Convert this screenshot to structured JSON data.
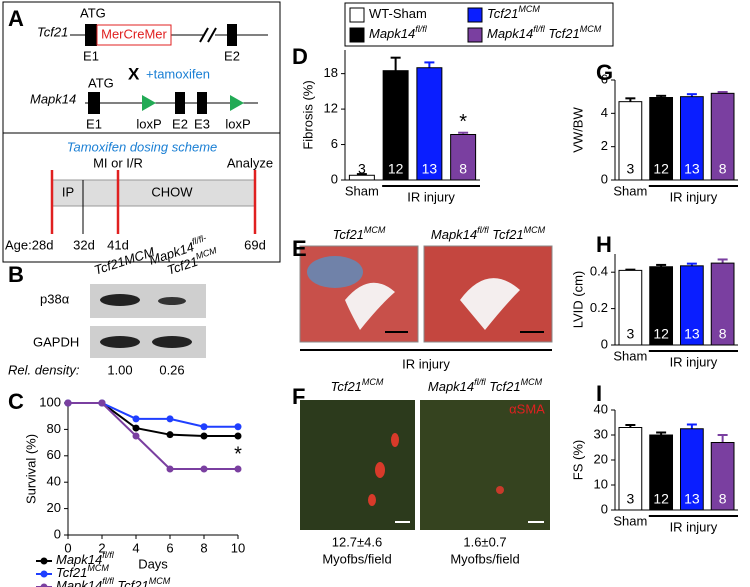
{
  "figure_labels": [
    "A",
    "B",
    "C",
    "D",
    "E",
    "F",
    "G",
    "H",
    "I"
  ],
  "panel_a": {
    "gene1": "Tcf21",
    "atg1": "ATG",
    "cassette": "MerCreMer",
    "e1a": "E1",
    "e2a": "E2",
    "cross": "X",
    "treatment": "+tamoxifen",
    "gene2": "Mapk14",
    "atg2": "ATG",
    "e1b": "E1",
    "loxp1": "loxP",
    "e2b": "E2",
    "e3": "E3",
    "loxp2": "loxP",
    "scheme_title": "Tamoxifen dosing scheme",
    "mi": "MI or I/R",
    "analyze": "Analyze",
    "ip": "IP",
    "chow": "CHOW",
    "ages": [
      "Age:28d",
      "32d",
      "41d",
      "69d"
    ]
  },
  "panel_b": {
    "lane_labels": [
      [
        [
          {
            "t": "Tcf21MCM"
          }
        ]
      ],
      [
        [
          {
            "t": "Mapk14",
            "s": "fl/fl-"
          }
        ],
        [
          {
            "t": "Tcf21",
            "s": "MCM"
          }
        ]
      ]
    ],
    "rows": [
      "p38α",
      "GAPDH"
    ],
    "density_label": "Rel. density:",
    "densities": [
      "1.00",
      "0.26"
    ]
  },
  "panel_e": {
    "titles": [
      [
        {
          "t": "Tcf21",
          "s": "MCM"
        }
      ],
      [
        {
          "t": "Mapk14",
          "s": "fl/fl"
        },
        {
          "t": " Tcf21",
          "s": "MCM"
        }
      ]
    ],
    "group_label": "IR injury"
  },
  "panel_f": {
    "titles": [
      [
        {
          "t": "Tcf21",
          "s": "MCM"
        }
      ],
      [
        {
          "t": "Mapk14",
          "s": "fl/fl"
        },
        {
          "t": " Tcf21",
          "s": "MCM"
        }
      ]
    ],
    "stain": "αSMA",
    "counts": [
      "12.7±4.6",
      "1.6±0.7"
    ],
    "units": [
      "Myofbs/field",
      "Myofbs/field"
    ]
  },
  "chart_data": [
    {
      "type": "line",
      "x": [
        0,
        2,
        4,
        6,
        8,
        10
      ],
      "xlim": [
        0,
        10
      ],
      "xticks": [
        0,
        2,
        4,
        6,
        8,
        10
      ],
      "ylim": [
        0,
        100
      ],
      "yticks": [
        0,
        20,
        40,
        60,
        80,
        100
      ],
      "x_label": "Days",
      "y_label": "Survival (%)",
      "annotation": "*",
      "legend": "bottom",
      "series": [
        {
          "name": [
            {
              "t": "Mapk14",
              "s": "fl/fl"
            }
          ],
          "color": "#000000",
          "values": [
            100,
            100,
            81,
            76,
            75,
            75
          ]
        },
        {
          "name": [
            {
              "t": "Tcf21",
              "s": "MCM"
            }
          ],
          "color": "#1f3fff",
          "values": [
            100,
            100,
            88,
            88,
            82,
            82
          ]
        },
        {
          "name": [
            {
              "t": "Mapk14",
              "s": "fl/fl"
            },
            {
              "t": " Tcf21",
              "s": "MCM"
            }
          ],
          "color": "#7a3fa0",
          "values": [
            100,
            100,
            75,
            50,
            50,
            50
          ]
        }
      ]
    },
    {
      "type": "bar",
      "categories": [
        "Sham",
        null,
        null,
        null
      ],
      "values": [
        0.8,
        18.5,
        19,
        7.7
      ],
      "errors": [
        0.2,
        2.2,
        0.9,
        0.3
      ],
      "colors": [
        "#ffffff",
        "#000000",
        "#0a1eff",
        "#7a3fa0"
      ],
      "bar_labels": [
        "3",
        "12",
        "13",
        "8"
      ],
      "group_label": "IR injury",
      "ylim": [
        0,
        22
      ],
      "yticks": [
        0,
        6,
        12,
        18
      ],
      "y_label": "Fibrosis (%)",
      "annotation": "*",
      "legend": [
        [
          {
            "t": "WT-Sham"
          }
        ],
        [
          {
            "t": "Mapk14",
            "s": "fl/fl"
          }
        ],
        [
          {
            "t": "Tcf21",
            "s": "MCM"
          }
        ],
        [
          {
            "t": "Mapk14",
            "s": "fl/fl"
          },
          {
            "t": " Tcf21",
            "s": "MCM"
          }
        ]
      ]
    },
    {
      "type": "bar",
      "categories": [
        "Sham",
        null,
        null,
        null
      ],
      "values": [
        4.7,
        4.95,
        5.0,
        5.2
      ],
      "errors": [
        0.2,
        0.1,
        0.15,
        0.08
      ],
      "colors": [
        "#ffffff",
        "#000000",
        "#0a1eff",
        "#7a3fa0"
      ],
      "bar_labels": [
        "3",
        "12",
        "13",
        "8"
      ],
      "group_label": "IR injury",
      "ylim": [
        0,
        6
      ],
      "yticks": [
        0,
        2,
        4,
        6
      ],
      "y_label": "VW/BW"
    },
    {
      "type": "bar",
      "categories": [
        "Sham",
        null,
        null,
        null
      ],
      "values": [
        0.41,
        0.43,
        0.435,
        0.45
      ],
      "errors": [
        0.004,
        0.01,
        0.012,
        0.02
      ],
      "colors": [
        "#ffffff",
        "#000000",
        "#0a1eff",
        "#7a3fa0"
      ],
      "bar_labels": [
        "3",
        "12",
        "13",
        "8"
      ],
      "group_label": "IR injury",
      "ylim": [
        0,
        0.5
      ],
      "yticks": [
        0,
        0.2,
        0.4
      ],
      "y_label": "LVID (cm)"
    },
    {
      "type": "bar",
      "categories": [
        "Sham",
        null,
        null,
        null
      ],
      "values": [
        33,
        30,
        32.5,
        27
      ],
      "errors": [
        1,
        1,
        1.7,
        3
      ],
      "colors": [
        "#ffffff",
        "#000000",
        "#0a1eff",
        "#7a3fa0"
      ],
      "bar_labels": [
        "3",
        "12",
        "13",
        "8"
      ],
      "group_label": "IR injury",
      "ylim": [
        0,
        40
      ],
      "yticks": [
        0,
        10,
        20,
        30,
        40
      ],
      "y_label": "FS (%)"
    }
  ]
}
